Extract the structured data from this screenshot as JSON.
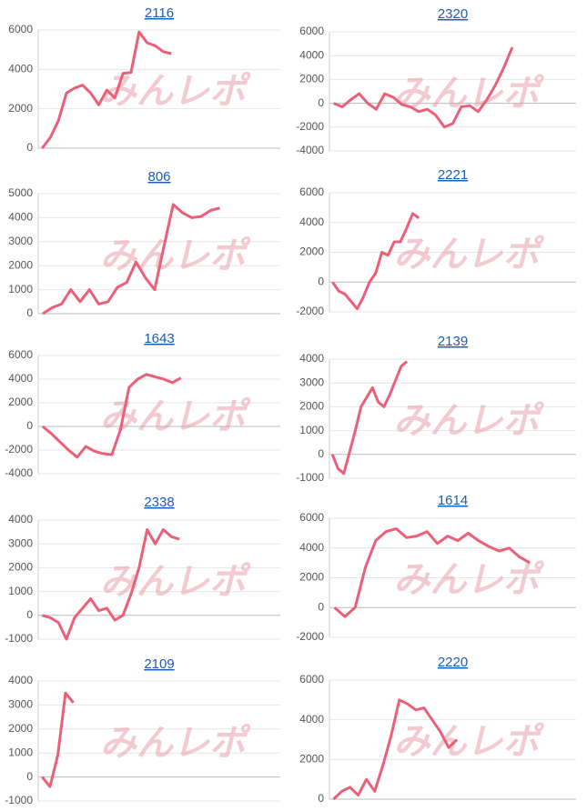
{
  "watermark": "みんレポ",
  "chart_data": [
    {
      "type": "line",
      "title": "2116",
      "color": "#ec5f76",
      "ylim": [
        0,
        6000
      ],
      "yticks": [
        0,
        2000,
        4000,
        6000
      ],
      "grid": true,
      "values": [
        0,
        550,
        1400,
        2800,
        3050,
        3200,
        2800,
        2200,
        2950,
        2550,
        3800,
        3850,
        5900,
        5350,
        5200,
        4900,
        4800,
        null,
        null,
        null,
        null,
        null,
        null,
        null,
        null,
        null,
        null,
        null,
        null,
        null
      ]
    },
    {
      "type": "line",
      "title": "2320",
      "color": "#ec5f76",
      "ylim": [
        -4000,
        6000
      ],
      "yticks": [
        -4000,
        -2000,
        0,
        2000,
        4000,
        6000
      ],
      "grid": true,
      "values": [
        0,
        -300,
        300,
        800,
        0,
        -500,
        800,
        500,
        -100,
        -300,
        -700,
        -500,
        -1000,
        -2000,
        -1700,
        -300,
        -200,
        -700,
        300,
        1500,
        3000,
        4700,
        null,
        null,
        null,
        null,
        null,
        null,
        null
      ]
    },
    {
      "type": "line",
      "title": "806",
      "color": "#ec5f76",
      "ylim": [
        0,
        5000
      ],
      "yticks": [
        0,
        1000,
        2000,
        3000,
        4000,
        5000
      ],
      "grid": true,
      "values": [
        0,
        250,
        400,
        1000,
        500,
        1000,
        400,
        500,
        1100,
        1300,
        2150,
        1500,
        1000,
        2800,
        4550,
        4200,
        4000,
        4050,
        4300,
        4400,
        null,
        null,
        null,
        null,
        null,
        null
      ]
    },
    {
      "type": "line",
      "title": "2221",
      "color": "#ec5f76",
      "ylim": [
        -2000,
        6000
      ],
      "yticks": [
        -2000,
        0,
        2000,
        4000,
        6000
      ],
      "grid": true,
      "values": [
        0,
        -600,
        -800,
        -1300,
        -1800,
        -1000,
        0,
        600,
        2000,
        1800,
        2700,
        2700,
        3600,
        4600,
        4300,
        null,
        null,
        null,
        null,
        null,
        null,
        null,
        null,
        null,
        null,
        null,
        null,
        null,
        null,
        null,
        null,
        null,
        null,
        null,
        null,
        null,
        null,
        null,
        null,
        null
      ]
    },
    {
      "type": "line",
      "title": "1643",
      "color": "#ec5f76",
      "ylim": [
        -4000,
        6000
      ],
      "yticks": [
        -4000,
        -2000,
        0,
        2000,
        4000,
        6000
      ],
      "grid": true,
      "values": [
        0,
        -600,
        -1300,
        -2000,
        -2600,
        -1700,
        -2100,
        -2300,
        -2400,
        -300,
        3300,
        4000,
        4400,
        4200,
        4000,
        3700,
        4100,
        null,
        null,
        null,
        null,
        null,
        null,
        null,
        null,
        null,
        null,
        null
      ]
    },
    {
      "type": "line",
      "title": "2139",
      "color": "#ec5f76",
      "ylim": [
        -1000,
        4000
      ],
      "yticks": [
        -1000,
        0,
        1000,
        2000,
        3000,
        4000
      ],
      "grid": true,
      "values": [
        0,
        -600,
        -800,
        100,
        1000,
        2000,
        2400,
        2800,
        2200,
        2000,
        2500,
        3100,
        3700,
        3900,
        null,
        null,
        null,
        null,
        null,
        null,
        null,
        null,
        null,
        null,
        null,
        null,
        null,
        null,
        null,
        null,
        null,
        null,
        null,
        null,
        null,
        null,
        null,
        null,
        null,
        null,
        null,
        null,
        null
      ]
    },
    {
      "type": "line",
      "title": "2338",
      "color": "#ec5f76",
      "ylim": [
        -1000,
        4000
      ],
      "yticks": [
        -1000,
        0,
        1000,
        2000,
        3000,
        4000
      ],
      "grid": true,
      "values": [
        0,
        -100,
        -300,
        -1000,
        -100,
        300,
        700,
        200,
        300,
        -200,
        0,
        900,
        2000,
        3600,
        3000,
        3600,
        3300,
        3200,
        null,
        null,
        null,
        null,
        null,
        null,
        null,
        null,
        null,
        null,
        null,
        null
      ]
    },
    {
      "type": "line",
      "title": "1614",
      "color": "#ec5f76",
      "ylim": [
        -2000,
        6000
      ],
      "yticks": [
        -2000,
        0,
        2000,
        4000,
        6000
      ],
      "grid": true,
      "values": [
        0,
        -600,
        0,
        2700,
        4500,
        5100,
        5300,
        4700,
        4800,
        5100,
        4300,
        4800,
        4500,
        5000,
        4500,
        4100,
        3800,
        4000,
        3400,
        3000,
        null,
        null,
        null,
        null
      ]
    },
    {
      "type": "line",
      "title": "2109",
      "color": "#ec5f76",
      "ylim": [
        -1000,
        4000
      ],
      "yticks": [
        -1000,
        0,
        1000,
        2000,
        3000,
        4000
      ],
      "grid": true,
      "values": [
        0,
        -400,
        900,
        3500,
        3100,
        null,
        null,
        null,
        null,
        null,
        null,
        null,
        null,
        null,
        null,
        null,
        null,
        null,
        null,
        null,
        null,
        null,
        null,
        null,
        null,
        null,
        null,
        null,
        null,
        null,
        null
      ]
    },
    {
      "type": "line",
      "title": "2220",
      "color": "#ec5f76",
      "ylim": [
        0,
        6000
      ],
      "yticks": [
        0,
        2000,
        4000,
        6000
      ],
      "grid": true,
      "values": [
        0,
        400,
        600,
        200,
        1000,
        400,
        1700,
        3200,
        5000,
        4800,
        4500,
        4600,
        4000,
        3400,
        2600,
        3000,
        null,
        null,
        null,
        null,
        null,
        null,
        null,
        null,
        null,
        null,
        null,
        null,
        null,
        null
      ]
    }
  ]
}
